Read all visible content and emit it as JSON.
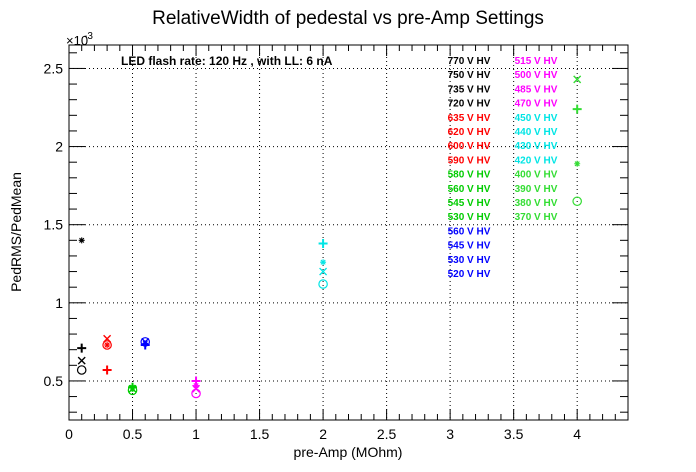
{
  "chart_data": {
    "type": "scatter",
    "title": "RelativeWidth of pedestal vs pre-Amp Settings",
    "xlabel": "pre-Amp (MOhm)",
    "ylabel": "PedRMS/PedMean",
    "y_exponent_label": "×10",
    "y_exponent_value": "-3",
    "annotation": "LED flash rate: 120 Hz , with LL: 6 nA",
    "xlim": [
      0,
      4.4
    ],
    "ylim": [
      0.25,
      2.65
    ],
    "grid": true,
    "x_ticks": [
      0,
      0.5,
      1,
      1.5,
      2,
      2.5,
      3,
      3.5,
      4
    ],
    "x_tick_labels": [
      "0",
      "0.5",
      "1",
      "1.5",
      "2",
      "2.5",
      "3",
      "3.5",
      "4"
    ],
    "y_ticks": [
      0.5,
      1,
      1.5,
      2,
      2.5
    ],
    "y_tick_labels": [
      "0.5",
      "1",
      "1.5",
      "2",
      "2.5"
    ],
    "legend_columns": [
      [
        {
          "label": "770 V HV",
          "color": "#000000"
        },
        {
          "label": "750 V HV",
          "color": "#000000"
        },
        {
          "label": "735 V HV",
          "color": "#000000"
        },
        {
          "label": "720 V HV",
          "color": "#000000"
        },
        {
          "label": "635 V HV",
          "color": "#ff0000"
        },
        {
          "label": "620 V HV",
          "color": "#ff0000"
        },
        {
          "label": "600 V HV",
          "color": "#ff0000"
        },
        {
          "label": "590 V HV",
          "color": "#ff0000"
        },
        {
          "label": "580 V HV",
          "color": "#00cc00"
        },
        {
          "label": "560 V HV",
          "color": "#00cc00"
        },
        {
          "label": "545 V HV",
          "color": "#00cc00"
        },
        {
          "label": "530 V HV",
          "color": "#00cc00"
        },
        {
          "label": "560 V HV",
          "color": "#0000ff"
        },
        {
          "label": "545 V HV",
          "color": "#0000ff"
        },
        {
          "label": "530 V HV",
          "color": "#0000ff"
        },
        {
          "label": "520 V HV",
          "color": "#0000ff"
        }
      ],
      [
        {
          "label": "515 V HV",
          "color": "#ff00ff"
        },
        {
          "label": "500 V HV",
          "color": "#ff00ff"
        },
        {
          "label": "485 V HV",
          "color": "#ff00ff"
        },
        {
          "label": "470 V HV",
          "color": "#ff00ff"
        },
        {
          "label": "450 V HV",
          "color": "#00e5e5"
        },
        {
          "label": "440 V HV",
          "color": "#00e5e5"
        },
        {
          "label": "430 V HV",
          "color": "#00e5e5"
        },
        {
          "label": "420 V HV",
          "color": "#00e5e5"
        },
        {
          "label": "400 V HV",
          "color": "#33dd33"
        },
        {
          "label": "390 V HV",
          "color": "#33dd33"
        },
        {
          "label": "380 V HV",
          "color": "#33dd33"
        },
        {
          "label": "370 V HV",
          "color": "#33dd33"
        }
      ]
    ],
    "series": [
      {
        "color": "#000000",
        "x": 0.1,
        "points": [
          {
            "marker": "star",
            "y": 1.4
          },
          {
            "marker": "plus",
            "y": 0.71
          },
          {
            "marker": "x",
            "y": 0.63
          },
          {
            "marker": "circle",
            "y": 0.57
          }
        ]
      },
      {
        "color": "#ff0000",
        "x": 0.3,
        "points": [
          {
            "marker": "x",
            "y": 0.77
          },
          {
            "marker": "circle",
            "y": 0.73
          },
          {
            "marker": "star",
            "y": 0.73
          },
          {
            "marker": "plus",
            "y": 0.57
          }
        ]
      },
      {
        "color": "#00cc00",
        "x": 0.5,
        "points": [
          {
            "marker": "plus",
            "y": 0.46
          },
          {
            "marker": "star",
            "y": 0.46
          },
          {
            "marker": "x",
            "y": 0.45
          },
          {
            "marker": "circle",
            "y": 0.44
          }
        ]
      },
      {
        "color": "#0000ff",
        "x": 0.6,
        "points": [
          {
            "marker": "circle",
            "y": 0.75
          },
          {
            "marker": "x",
            "y": 0.75
          },
          {
            "marker": "star",
            "y": 0.74
          },
          {
            "marker": "plus",
            "y": 0.73
          }
        ]
      },
      {
        "color": "#ff00ff",
        "x": 1.0,
        "points": [
          {
            "marker": "plus",
            "y": 0.5
          },
          {
            "marker": "star",
            "y": 0.47
          },
          {
            "marker": "x",
            "y": 0.45
          },
          {
            "marker": "circle",
            "y": 0.42
          }
        ]
      },
      {
        "color": "#00e5e5",
        "x": 2.0,
        "points": [
          {
            "marker": "plus",
            "y": 1.38
          },
          {
            "marker": "star",
            "y": 1.26
          },
          {
            "marker": "x",
            "y": 1.2
          },
          {
            "marker": "circle",
            "y": 1.12
          }
        ]
      },
      {
        "color": "#33dd33",
        "x": 4.0,
        "points": [
          {
            "marker": "x",
            "y": 2.43
          },
          {
            "marker": "plus",
            "y": 2.24
          },
          {
            "marker": "star",
            "y": 1.89
          },
          {
            "marker": "circle",
            "y": 1.65
          }
        ]
      }
    ]
  }
}
